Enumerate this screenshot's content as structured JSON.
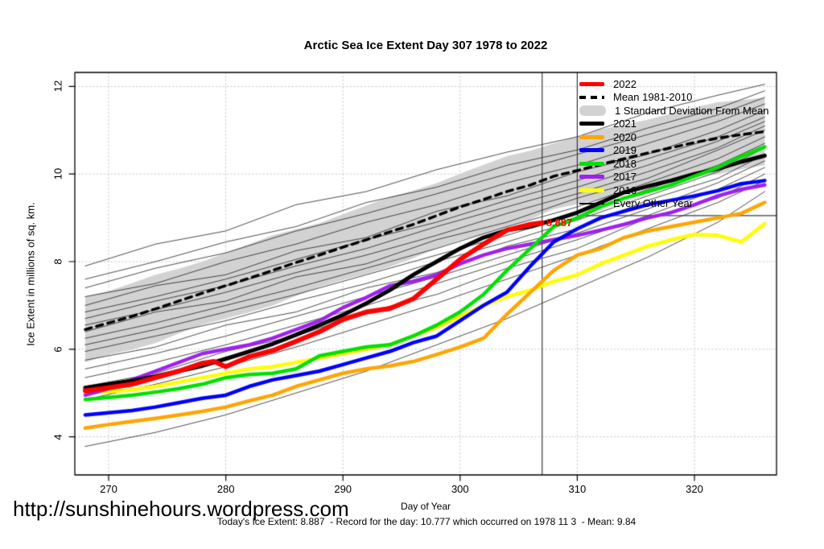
{
  "title": "Arctic Sea Ice Extent Day 307 1978 to 2022",
  "watermark": "http://sunshinehours.wordpress.com",
  "footer": "Today's Ice Extent: 8.887  - Record for the day: 10.777 which occurred on 1978 11 3  - Mean: 9.84",
  "annotation": {
    "label": "8.887",
    "day": 307,
    "value": 8.887,
    "color": "#FF0000"
  },
  "chart_data": {
    "type": "line",
    "title": "Arctic Sea Ice Extent Day 307 1978 to 2022",
    "xlabel": "Day of Year",
    "ylabel": "Ice Extent in millions of sq. km.",
    "xlim": [
      267.1,
      327.0
    ],
    "ylim": [
      3.1,
      12.3
    ],
    "xticks": [
      270,
      280,
      290,
      300,
      310,
      320
    ],
    "yticks": [
      4,
      6,
      8,
      10,
      12
    ],
    "grid": "dotted",
    "grid_color": "#C8C8C8",
    "legend_position": "top-right",
    "legend": [
      {
        "label": "2022",
        "style": "line",
        "color": "#FF0000"
      },
      {
        "label": "Mean 1981-2010",
        "style": "dashed",
        "color": "#000000"
      },
      {
        "label": "1 Standard Deviation From Mean",
        "style": "band",
        "color": "#D2D2D2"
      },
      {
        "label": "2021",
        "style": "line",
        "color": "#000000"
      },
      {
        "label": "2020",
        "style": "line",
        "color": "#FFA500"
      },
      {
        "label": "2019",
        "style": "line",
        "color": "#0000FF"
      },
      {
        "label": "2018",
        "style": "line",
        "color": "#00E000"
      },
      {
        "label": "2017",
        "style": "line",
        "color": "#A020F0"
      },
      {
        "label": "2016",
        "style": "line",
        "color": "#FFFF00"
      },
      {
        "label": "Every Other Year",
        "style": "thin",
        "color": "#000000"
      }
    ],
    "reference_lines": {
      "vline_day": 307,
      "corner_day": 310,
      "corner_value": 9.05,
      "color": "#3A3A3A"
    },
    "days": [
      268,
      270,
      272,
      274,
      276,
      278,
      280,
      282,
      284,
      286,
      288,
      290,
      292,
      294,
      296,
      298,
      300,
      302,
      304,
      306,
      308,
      310,
      312,
      314,
      316,
      318,
      320,
      322,
      324,
      326
    ],
    "mean_series": {
      "name": "Mean 1981-2010",
      "color": "#000000",
      "values": [
        6.45,
        6.6,
        6.75,
        6.92,
        7.1,
        7.28,
        7.45,
        7.62,
        7.8,
        7.98,
        8.15,
        8.33,
        8.5,
        8.68,
        8.85,
        9.05,
        9.25,
        9.42,
        9.6,
        9.75,
        9.95,
        10.08,
        10.22,
        10.35,
        10.48,
        10.6,
        10.72,
        10.82,
        10.9,
        10.97
      ]
    },
    "std_band": {
      "name": "1 Standard Deviation From Mean",
      "color": "#D2D2D2",
      "upper": [
        7.2,
        7.33,
        7.51,
        7.7,
        7.84,
        8.0,
        8.2,
        8.4,
        8.6,
        8.74,
        8.88,
        9.08,
        9.28,
        9.48,
        9.62,
        9.79,
        10.01,
        10.21,
        10.41,
        10.53,
        10.7,
        10.85,
        11.02,
        11.13,
        11.24,
        11.38,
        11.52,
        11.64,
        11.69,
        11.74
      ],
      "lower": [
        5.7,
        5.87,
        5.99,
        6.14,
        6.36,
        6.56,
        6.7,
        6.84,
        7.0,
        7.22,
        7.42,
        7.58,
        7.72,
        7.88,
        8.08,
        8.31,
        8.49,
        8.63,
        8.79,
        8.97,
        9.2,
        9.31,
        9.42,
        9.57,
        9.72,
        9.82,
        9.92,
        10.0,
        10.11,
        10.2
      ]
    },
    "series": [
      {
        "name": "2016",
        "color": "#FFFF00",
        "width": 4.5,
        "values": [
          5.0,
          5.03,
          5.07,
          5.15,
          5.25,
          5.35,
          5.45,
          5.55,
          5.6,
          5.7,
          5.8,
          5.9,
          6.0,
          6.1,
          6.3,
          6.5,
          6.75,
          7.0,
          7.2,
          7.35,
          7.55,
          7.7,
          7.95,
          8.15,
          8.35,
          8.5,
          8.62,
          8.6,
          8.45,
          8.87
        ]
      },
      {
        "name": "2017",
        "color": "#A020F0",
        "width": 4.5,
        "values": [
          4.95,
          5.1,
          5.3,
          5.5,
          5.7,
          5.9,
          6.0,
          6.1,
          6.25,
          6.45,
          6.65,
          6.95,
          7.18,
          7.45,
          7.55,
          7.7,
          7.95,
          8.15,
          8.3,
          8.4,
          8.5,
          8.6,
          8.72,
          8.85,
          9.0,
          9.12,
          9.3,
          9.5,
          9.65,
          9.75
        ]
      },
      {
        "name": "2019",
        "color": "#0000FF",
        "width": 4.5,
        "values": [
          4.5,
          4.55,
          4.6,
          4.68,
          4.78,
          4.88,
          4.95,
          5.15,
          5.3,
          5.4,
          5.5,
          5.65,
          5.8,
          5.95,
          6.15,
          6.3,
          6.65,
          7.0,
          7.3,
          7.9,
          8.45,
          8.75,
          9.0,
          9.15,
          9.3,
          9.4,
          9.5,
          9.62,
          9.78,
          9.85
        ]
      },
      {
        "name": "2020",
        "color": "#FFA500",
        "width": 4.5,
        "values": [
          4.2,
          4.28,
          4.35,
          4.42,
          4.5,
          4.58,
          4.68,
          4.82,
          4.95,
          5.15,
          5.3,
          5.45,
          5.55,
          5.62,
          5.72,
          5.88,
          6.05,
          6.25,
          6.8,
          7.3,
          7.8,
          8.15,
          8.3,
          8.55,
          8.7,
          8.8,
          8.9,
          9.0,
          9.1,
          9.35
        ]
      },
      {
        "name": "2021",
        "color": "#000000",
        "width": 5,
        "values": [
          5.12,
          5.2,
          5.28,
          5.38,
          5.5,
          5.62,
          5.78,
          5.95,
          6.12,
          6.33,
          6.55,
          6.78,
          7.05,
          7.35,
          7.7,
          8.0,
          8.3,
          8.55,
          8.72,
          8.8,
          8.95,
          9.12,
          9.35,
          9.58,
          9.72,
          9.85,
          10.0,
          10.12,
          10.28,
          10.42
        ]
      },
      {
        "name": "2018",
        "color": "#00E000",
        "width": 4.5,
        "values": [
          4.85,
          4.9,
          4.95,
          5.02,
          5.1,
          5.2,
          5.35,
          5.42,
          5.45,
          5.55,
          5.85,
          5.95,
          6.05,
          6.1,
          6.3,
          6.55,
          6.85,
          7.25,
          7.8,
          8.3,
          8.8,
          9.0,
          9.25,
          9.45,
          9.6,
          9.75,
          9.95,
          10.15,
          10.4,
          10.62
        ]
      }
    ],
    "series_2022": {
      "name": "2022",
      "color": "#FF0000",
      "width": 6,
      "days": [
        268,
        270,
        272,
        274,
        276,
        278,
        279,
        280,
        282,
        284,
        286,
        288,
        290,
        292,
        294,
        296,
        298,
        300,
        302,
        304,
        306,
        307
      ],
      "values": [
        5.05,
        5.12,
        5.2,
        5.35,
        5.5,
        5.68,
        5.72,
        5.6,
        5.83,
        5.97,
        6.18,
        6.4,
        6.68,
        6.85,
        6.93,
        7.15,
        7.6,
        8.05,
        8.4,
        8.72,
        8.85,
        8.887
      ]
    },
    "background_days": [
      268,
      274,
      280,
      286,
      292,
      298,
      304,
      310,
      316,
      322,
      326
    ],
    "background_series": [
      [
        7.9,
        8.4,
        8.7,
        9.3,
        9.6,
        10.1,
        10.5,
        10.85,
        11.4,
        11.8,
        12.05
      ],
      [
        7.6,
        8.0,
        8.45,
        8.8,
        9.35,
        9.7,
        10.2,
        10.55,
        11.05,
        11.5,
        11.9
      ],
      [
        7.4,
        7.85,
        8.2,
        8.7,
        9.1,
        9.55,
        10.0,
        10.45,
        10.9,
        11.35,
        11.75
      ],
      [
        7.2,
        7.5,
        8.0,
        8.4,
        8.9,
        9.3,
        9.8,
        10.2,
        10.7,
        11.2,
        11.6
      ],
      [
        7.0,
        7.45,
        7.7,
        8.25,
        8.55,
        9.15,
        9.5,
        10.05,
        10.45,
        11.0,
        11.45
      ],
      [
        6.85,
        7.2,
        7.6,
        8.05,
        8.5,
        8.9,
        9.4,
        9.85,
        10.35,
        10.85,
        11.3
      ],
      [
        6.7,
        7.1,
        7.45,
        7.9,
        8.3,
        8.8,
        9.25,
        9.7,
        10.2,
        10.75,
        11.2
      ],
      [
        6.55,
        6.9,
        7.3,
        7.75,
        8.15,
        8.6,
        9.1,
        9.55,
        10.05,
        10.6,
        11.1
      ],
      [
        6.4,
        6.85,
        7.1,
        7.65,
        7.95,
        8.5,
        8.9,
        9.45,
        9.9,
        10.55,
        11.0
      ],
      [
        6.25,
        6.6,
        7.0,
        7.4,
        7.85,
        8.3,
        8.8,
        9.25,
        9.8,
        10.35,
        10.85
      ],
      [
        6.1,
        6.45,
        6.85,
        7.25,
        7.7,
        8.15,
        8.6,
        9.1,
        9.65,
        10.2,
        10.7
      ],
      [
        5.95,
        6.3,
        6.65,
        7.1,
        7.5,
        8.0,
        8.45,
        8.95,
        9.5,
        10.05,
        10.6
      ],
      [
        5.75,
        6.05,
        6.55,
        6.85,
        7.4,
        7.75,
        8.35,
        8.75,
        9.4,
        9.9,
        10.45
      ],
      [
        5.55,
        5.9,
        6.3,
        6.75,
        7.2,
        7.65,
        8.15,
        8.65,
        9.2,
        9.8,
        10.3
      ],
      [
        5.35,
        5.7,
        6.1,
        6.55,
        7.0,
        7.5,
        8.0,
        8.5,
        9.05,
        9.65,
        10.15
      ],
      [
        5.15,
        5.45,
        5.95,
        6.3,
        6.85,
        7.25,
        7.85,
        8.3,
        9.0,
        9.45,
        10.0
      ],
      [
        4.85,
        5.2,
        5.6,
        6.05,
        6.55,
        7.05,
        7.6,
        8.15,
        8.75,
        9.35,
        9.85
      ],
      [
        3.78,
        4.1,
        4.5,
        5.0,
        5.5,
        6.1,
        6.7,
        7.4,
        8.1,
        8.9,
        9.6
      ]
    ]
  }
}
